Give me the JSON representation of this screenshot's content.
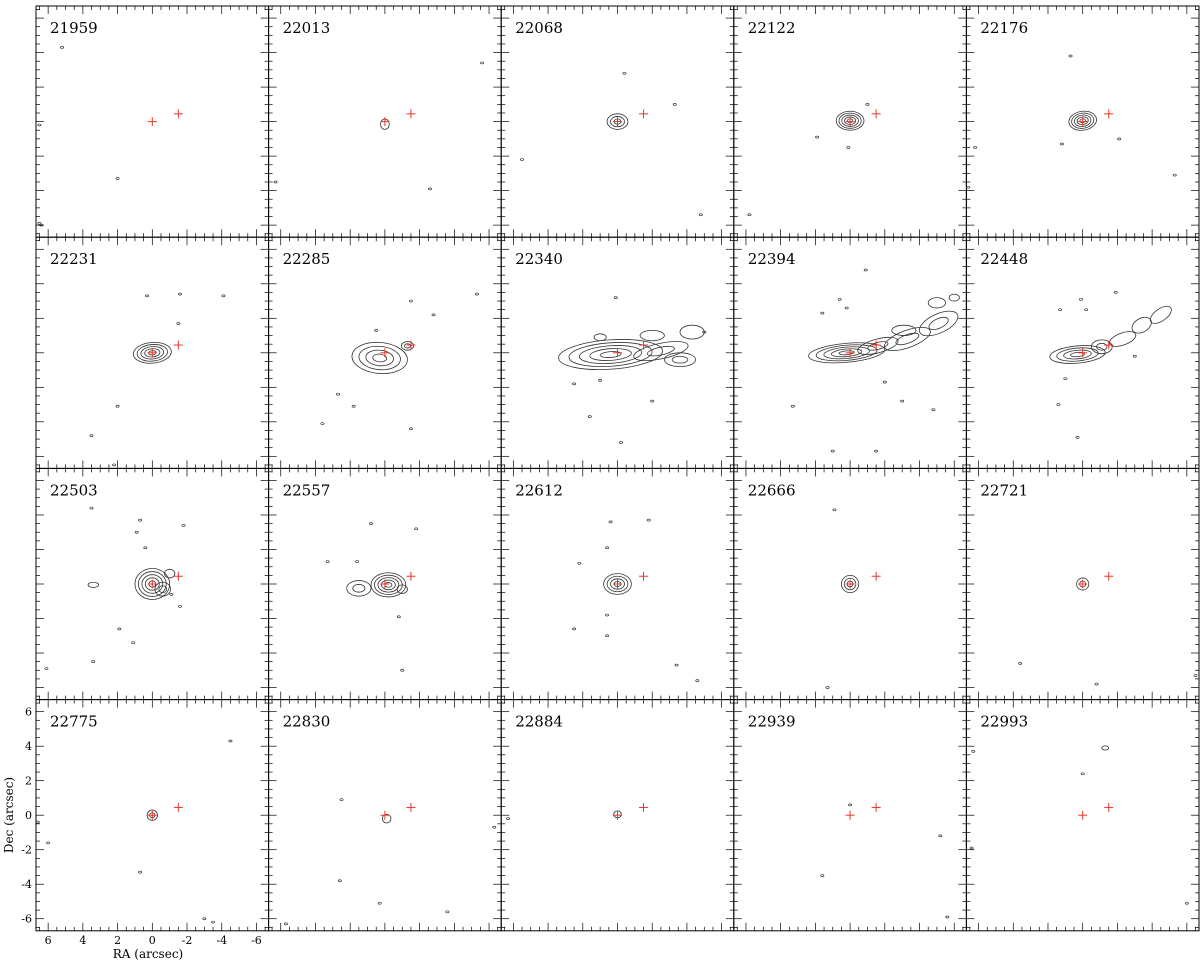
{
  "chart_data": {
    "type": "contour",
    "layout": {
      "rows": 4,
      "cols": 5
    },
    "xlabel": "RA (arcsec)",
    "ylabel": "Dec (arcsec)",
    "xlim": [
      6.7,
      -6.7
    ],
    "ylim": [
      -6.7,
      6.7
    ],
    "x_ticks": [
      6,
      4,
      2,
      0,
      -2,
      -4,
      -6
    ],
    "y_ticks": [
      -6,
      -4,
      -2,
      0,
      2,
      4,
      6
    ],
    "grid": false,
    "contour_color": "#333333",
    "marker_color": "#e8372c",
    "markers": [
      {
        "x": 0.0,
        "y": 0.0
      },
      {
        "x": -1.5,
        "y": 0.45
      }
    ],
    "panels": [
      {
        "label": "21959",
        "blobs": [],
        "specks": [
          [
            6.5,
            -5.9
          ],
          [
            2.0,
            -3.3
          ],
          [
            5.2,
            4.3
          ],
          [
            6.5,
            -0.2
          ],
          [
            6.4,
            -6.0
          ]
        ]
      },
      {
        "label": "22013",
        "blobs": [
          {
            "x": 0.0,
            "y": -0.15,
            "rx": 0.25,
            "ry": 0.3,
            "n": 1,
            "angle": 0
          }
        ],
        "specks": [
          [
            -2.6,
            -3.9
          ],
          [
            6.3,
            -3.5
          ],
          [
            -5.6,
            3.4
          ]
        ]
      },
      {
        "label": "22068",
        "blobs": [
          {
            "x": 0.0,
            "y": 0.0,
            "rx": 0.6,
            "ry": 0.45,
            "n": 3,
            "angle": 0
          }
        ],
        "specks": [
          [
            -3.3,
            1.0
          ],
          [
            -0.4,
            2.8
          ],
          [
            5.5,
            -2.2
          ],
          [
            -4.8,
            -5.4
          ]
        ]
      },
      {
        "label": "22122",
        "blobs": [
          {
            "x": 0.0,
            "y": 0.05,
            "rx": 0.8,
            "ry": 0.55,
            "n": 5,
            "angle": 0
          }
        ],
        "specks": [
          [
            0.1,
            -1.5
          ],
          [
            -1.0,
            1.0
          ],
          [
            5.8,
            -5.4
          ],
          [
            1.9,
            -0.9
          ]
        ]
      },
      {
        "label": "22176",
        "blobs": [
          {
            "x": 0.0,
            "y": 0.05,
            "rx": 0.8,
            "ry": 0.55,
            "n": 5,
            "angle": -8
          }
        ],
        "specks": [
          [
            0.7,
            3.8
          ],
          [
            1.2,
            -1.3
          ],
          [
            -2.1,
            -1.0
          ],
          [
            6.2,
            -1.5
          ],
          [
            -5.3,
            -3.1
          ],
          [
            6.6,
            -3.8
          ]
        ]
      },
      {
        "label": "22231",
        "blobs": [
          {
            "x": 0.0,
            "y": 0.0,
            "rx": 1.1,
            "ry": 0.6,
            "n": 5,
            "angle": -5
          }
        ],
        "specks": [
          [
            -1.6,
            3.4
          ],
          [
            0.3,
            3.3
          ],
          [
            -1.5,
            1.7
          ],
          [
            2.0,
            -3.1
          ],
          [
            3.5,
            -4.8
          ],
          [
            2.2,
            -6.5
          ],
          [
            -4.1,
            3.3
          ]
        ]
      },
      {
        "label": "22285",
        "blobs": [
          {
            "x": 0.3,
            "y": -0.3,
            "rx": 1.6,
            "ry": 0.9,
            "n": 4,
            "angle": 5
          },
          {
            "x": -1.3,
            "y": 0.4,
            "rx": 0.35,
            "ry": 0.25,
            "n": 2,
            "angle": 0
          }
        ],
        "specks": [
          [
            -5.3,
            3.4
          ],
          [
            -1.5,
            3.0
          ],
          [
            0.5,
            1.3
          ],
          [
            1.8,
            -3.1
          ],
          [
            3.6,
            -4.1
          ],
          [
            -1.5,
            -4.4
          ],
          [
            2.7,
            -2.4
          ],
          [
            -2.8,
            2.2
          ]
        ]
      },
      {
        "label": "22340",
        "blobs": [
          {
            "x": 0.4,
            "y": -0.1,
            "rx": 3.0,
            "ry": 0.85,
            "n": 5,
            "angle": -4
          },
          {
            "x": -2.5,
            "y": 0.1,
            "rx": 1.6,
            "ry": 0.45,
            "n": 2,
            "angle": -12
          },
          {
            "x": -3.6,
            "y": -0.4,
            "rx": 0.9,
            "ry": 0.4,
            "n": 2,
            "angle": 0
          },
          {
            "x": -2.0,
            "y": 1.0,
            "rx": 0.7,
            "ry": 0.3,
            "n": 1,
            "angle": 0
          },
          {
            "x": -4.3,
            "y": 1.2,
            "rx": 0.7,
            "ry": 0.4,
            "n": 1,
            "angle": 0
          },
          {
            "x": 1.0,
            "y": 0.9,
            "rx": 0.35,
            "ry": 0.2,
            "n": 1,
            "angle": 0
          }
        ],
        "specks": [
          [
            0.1,
            3.2
          ],
          [
            1.0,
            -1.6
          ],
          [
            2.5,
            -1.8
          ],
          [
            -2.0,
            -2.8
          ],
          [
            -0.2,
            -5.2
          ],
          [
            1.6,
            -3.7
          ],
          [
            -5.0,
            1.2
          ]
        ]
      },
      {
        "label": "22394",
        "blobs": [
          {
            "x": 0.2,
            "y": 0.0,
            "rx": 2.2,
            "ry": 0.55,
            "n": 5,
            "angle": -5
          },
          {
            "x": -1.6,
            "y": 0.4,
            "rx": 1.2,
            "ry": 0.4,
            "n": 2,
            "angle": -15
          },
          {
            "x": -3.3,
            "y": 0.8,
            "rx": 1.4,
            "ry": 0.5,
            "n": 2,
            "angle": -20
          },
          {
            "x": -5.1,
            "y": 1.7,
            "rx": 1.2,
            "ry": 0.55,
            "n": 2,
            "angle": -25
          },
          {
            "x": -5.0,
            "y": 2.9,
            "rx": 0.5,
            "ry": 0.3,
            "n": 1,
            "angle": 0
          },
          {
            "x": -6.0,
            "y": 3.2,
            "rx": 0.3,
            "ry": 0.2,
            "n": 1,
            "angle": 0
          },
          {
            "x": -3.1,
            "y": 1.3,
            "rx": 0.7,
            "ry": 0.3,
            "n": 1,
            "angle": 0
          }
        ],
        "specks": [
          [
            1.6,
            2.3
          ],
          [
            0.2,
            2.6
          ],
          [
            -0.9,
            4.8
          ],
          [
            -2.0,
            -1.7
          ],
          [
            -1.5,
            -5.7
          ],
          [
            1.0,
            -5.7
          ],
          [
            3.3,
            -3.1
          ],
          [
            0.6,
            3.1
          ],
          [
            -3.0,
            -2.8
          ],
          [
            -4.8,
            -3.3
          ]
        ]
      },
      {
        "label": "22448",
        "blobs": [
          {
            "x": 0.3,
            "y": -0.1,
            "rx": 1.6,
            "ry": 0.5,
            "n": 4,
            "angle": -5
          },
          {
            "x": -1.1,
            "y": 0.35,
            "rx": 0.6,
            "ry": 0.4,
            "n": 2,
            "angle": 0
          },
          {
            "x": -2.3,
            "y": 0.8,
            "rx": 0.8,
            "ry": 0.35,
            "n": 1,
            "angle": -20
          },
          {
            "x": -3.4,
            "y": 1.6,
            "rx": 0.6,
            "ry": 0.4,
            "n": 1,
            "angle": -30
          },
          {
            "x": -4.5,
            "y": 2.2,
            "rx": 0.7,
            "ry": 0.35,
            "n": 1,
            "angle": -35
          }
        ],
        "specks": [
          [
            1.3,
            2.5
          ],
          [
            -0.2,
            2.5
          ],
          [
            0.1,
            3.1
          ],
          [
            -1.9,
            3.5
          ],
          [
            1.0,
            -1.5
          ],
          [
            1.4,
            -3.0
          ],
          [
            0.3,
            -4.9
          ],
          [
            -3.0,
            -0.2
          ]
        ]
      },
      {
        "label": "22503",
        "blobs": [
          {
            "x": 0.0,
            "y": 0.0,
            "rx": 1.0,
            "ry": 0.9,
            "n": 5,
            "angle": 0
          },
          {
            "x": -0.6,
            "y": -0.3,
            "rx": 0.45,
            "ry": 0.4,
            "n": 2,
            "angle": 0
          },
          {
            "x": -1.0,
            "y": 0.6,
            "rx": 0.3,
            "ry": 0.25,
            "n": 1,
            "angle": 0
          },
          {
            "x": 3.4,
            "y": -0.05,
            "rx": 0.3,
            "ry": 0.15,
            "n": 1,
            "angle": 0
          }
        ],
        "specks": [
          [
            3.5,
            4.4
          ],
          [
            -1.8,
            3.4
          ],
          [
            0.9,
            3.0
          ],
          [
            0.4,
            2.1
          ],
          [
            -1.1,
            -0.6
          ],
          [
            -1.6,
            -1.3
          ],
          [
            1.9,
            -2.6
          ],
          [
            1.1,
            -3.4
          ],
          [
            3.4,
            -4.5
          ],
          [
            6.1,
            -4.9
          ],
          [
            0.7,
            3.7
          ]
        ]
      },
      {
        "label": "22557",
        "blobs": [
          {
            "x": -0.2,
            "y": -0.05,
            "rx": 1.0,
            "ry": 0.7,
            "n": 5,
            "angle": 0
          },
          {
            "x": 1.5,
            "y": -0.25,
            "rx": 0.7,
            "ry": 0.45,
            "n": 2,
            "angle": 0
          },
          {
            "x": -1.0,
            "y": -0.3,
            "rx": 0.3,
            "ry": 0.25,
            "n": 1,
            "angle": 0
          }
        ],
        "specks": [
          [
            -1.8,
            3.2
          ],
          [
            1.6,
            1.3
          ],
          [
            3.3,
            1.3
          ],
          [
            -0.8,
            -1.9
          ],
          [
            -1.0,
            -5.0
          ],
          [
            0.8,
            3.5
          ]
        ]
      },
      {
        "label": "22612",
        "blobs": [
          {
            "x": 0.0,
            "y": 0.0,
            "rx": 0.8,
            "ry": 0.6,
            "n": 4,
            "angle": 0
          }
        ],
        "specks": [
          [
            0.4,
            3.6
          ],
          [
            -1.8,
            3.7
          ],
          [
            0.6,
            2.1
          ],
          [
            2.2,
            1.2
          ],
          [
            0.6,
            -1.8
          ],
          [
            0.6,
            -3.0
          ],
          [
            -3.4,
            -4.7
          ],
          [
            -4.6,
            -5.6
          ],
          [
            2.5,
            -2.6
          ]
        ]
      },
      {
        "label": "22666",
        "blobs": [
          {
            "x": 0.0,
            "y": 0.0,
            "rx": 0.5,
            "ry": 0.5,
            "n": 3,
            "angle": 0
          }
        ],
        "specks": [
          [
            0.9,
            4.3
          ],
          [
            1.3,
            -6.0
          ]
        ]
      },
      {
        "label": "22721",
        "blobs": [
          {
            "x": 0.0,
            "y": 0.0,
            "rx": 0.35,
            "ry": 0.35,
            "n": 2,
            "angle": 0
          }
        ],
        "specks": [
          [
            3.6,
            -4.6
          ],
          [
            -6.5,
            -5.3
          ],
          [
            -0.8,
            -5.8
          ]
        ]
      },
      {
        "label": "22775",
        "blobs": [
          {
            "x": 0.0,
            "y": 0.0,
            "rx": 0.3,
            "ry": 0.3,
            "n": 2,
            "angle": 0
          }
        ],
        "specks": [
          [
            -4.5,
            4.3
          ],
          [
            0.7,
            -3.3
          ],
          [
            6.0,
            -1.6
          ],
          [
            6.6,
            -0.4
          ],
          [
            -3.0,
            -6.0
          ],
          [
            -3.5,
            -6.2
          ]
        ]
      },
      {
        "label": "22830",
        "blobs": [
          {
            "x": -0.1,
            "y": -0.2,
            "rx": 0.25,
            "ry": 0.25,
            "n": 1,
            "angle": 0
          }
        ],
        "specks": [
          [
            2.6,
            -3.8
          ],
          [
            0.3,
            -5.1
          ],
          [
            -3.6,
            -5.6
          ],
          [
            2.5,
            0.9
          ],
          [
            5.7,
            -6.3
          ],
          [
            -6.3,
            -0.7
          ]
        ]
      },
      {
        "label": "22884",
        "blobs": [
          {
            "x": 0.0,
            "y": 0.05,
            "rx": 0.22,
            "ry": 0.2,
            "n": 1,
            "angle": 0
          }
        ],
        "specks": [
          [
            6.3,
            -0.2
          ]
        ]
      },
      {
        "label": "22939",
        "blobs": [],
        "specks": [
          [
            0.0,
            0.6
          ],
          [
            -5.2,
            -1.2
          ],
          [
            1.6,
            -3.5
          ],
          [
            -5.6,
            -5.9
          ]
        ]
      },
      {
        "label": "22993",
        "blobs": [
          {
            "x": -1.3,
            "y": 3.9,
            "rx": 0.2,
            "ry": 0.12,
            "n": 1,
            "angle": 0
          }
        ],
        "specks": [
          [
            0.0,
            2.4
          ],
          [
            6.3,
            3.7
          ],
          [
            6.4,
            -1.9
          ],
          [
            -6.0,
            -5.1
          ]
        ]
      }
    ]
  }
}
